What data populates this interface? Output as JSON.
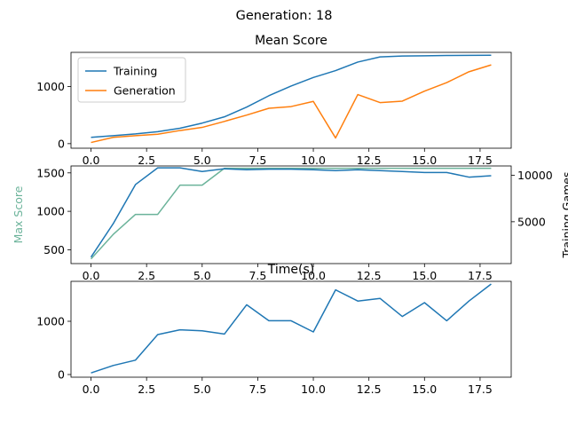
{
  "suptitle": "Generation: 18",
  "colors": {
    "training": "#1f77b4",
    "generation": "#ff7f0e",
    "max": "#6bb39a"
  },
  "chart_data": [
    {
      "type": "line",
      "title": "Mean Score",
      "xlim": [
        -0.9,
        18.9
      ],
      "ylim": [
        -80,
        1600
      ],
      "xticks": [
        0,
        2.5,
        5,
        7.5,
        10,
        12.5,
        15,
        17.5
      ],
      "xtick_labels": [
        "0.0",
        "2.5",
        "5.0",
        "7.5",
        "10.0",
        "12.5",
        "15.0",
        "17.5"
      ],
      "yticks": [
        0,
        1000
      ],
      "ytick_labels": [
        "0",
        "1000"
      ],
      "legend": {
        "placement": "upper-left",
        "entries": [
          "Training",
          "Generation"
        ]
      },
      "x": [
        0,
        1,
        2,
        3,
        4,
        5,
        6,
        7,
        8,
        9,
        10,
        11,
        12,
        13,
        14,
        15,
        16,
        17,
        18
      ],
      "series": [
        {
          "name": "Training",
          "color_key": "training",
          "values": [
            110,
            140,
            170,
            210,
            270,
            360,
            470,
            640,
            840,
            1010,
            1160,
            1280,
            1430,
            1520,
            1535,
            1540,
            1545,
            1548,
            1550
          ]
        },
        {
          "name": "Generation",
          "color_key": "generation",
          "values": [
            20,
            110,
            140,
            165,
            230,
            285,
            390,
            500,
            620,
            650,
            740,
            100,
            860,
            720,
            745,
            920,
            1070,
            1260,
            1380
          ]
        }
      ]
    },
    {
      "type": "line",
      "xlim": [
        -0.9,
        18.9
      ],
      "ylim": [
        320,
        1590
      ],
      "y2lim": [
        500,
        11000
      ],
      "xticks": [
        0,
        2.5,
        5,
        7.5,
        10,
        12.5,
        15,
        17.5
      ],
      "xtick_labels": [
        "0.0",
        "2.5",
        "5.0",
        "7.5",
        "10.0",
        "12.5",
        "15.0",
        "17.5"
      ],
      "yticks": [
        500,
        1000,
        1500
      ],
      "ytick_labels": [
        "500",
        "1000",
        "1500"
      ],
      "y2ticks": [
        5000,
        10000
      ],
      "y2tick_labels": [
        "5000",
        "10000"
      ],
      "ylabel": "Max Score",
      "y2label": "Training Games",
      "x": [
        0,
        1,
        2,
        3,
        4,
        5,
        6,
        7,
        8,
        9,
        10,
        11,
        12,
        13,
        14,
        15,
        16,
        17,
        18
      ],
      "series": [
        {
          "axis": "left",
          "color_key": "max",
          "values": [
            380,
            700,
            960,
            960,
            1340,
            1340,
            1560,
            1560,
            1560,
            1560,
            1560,
            1560,
            1560,
            1560,
            1560,
            1560,
            1560,
            1560,
            1560
          ]
        },
        {
          "axis": "right",
          "color_key": "training",
          "values": [
            1200,
            4800,
            9000,
            10800,
            10800,
            10400,
            10700,
            10600,
            10650,
            10650,
            10600,
            10500,
            10600,
            10500,
            10400,
            10300,
            10300,
            9800,
            9950
          ]
        }
      ]
    },
    {
      "type": "line",
      "title": "Time(s)",
      "xlim": [
        -0.9,
        18.9
      ],
      "ylim": [
        -50,
        1750
      ],
      "xticks": [
        0,
        2.5,
        5,
        7.5,
        10,
        12.5,
        15,
        17.5
      ],
      "xtick_labels": [
        "0.0",
        "2.5",
        "5.0",
        "7.5",
        "10.0",
        "12.5",
        "15.0",
        "17.5"
      ],
      "yticks": [
        0,
        1000
      ],
      "ytick_labels": [
        "0",
        "1000"
      ],
      "x": [
        0,
        1,
        2,
        3,
        4,
        5,
        6,
        7,
        8,
        9,
        10,
        11,
        12,
        13,
        14,
        15,
        16,
        17,
        18
      ],
      "series": [
        {
          "color_key": "training",
          "values": [
            30,
            170,
            270,
            750,
            840,
            820,
            760,
            1310,
            1010,
            1010,
            800,
            1590,
            1380,
            1430,
            1090,
            1350,
            1010,
            1380,
            1700
          ]
        }
      ]
    }
  ]
}
